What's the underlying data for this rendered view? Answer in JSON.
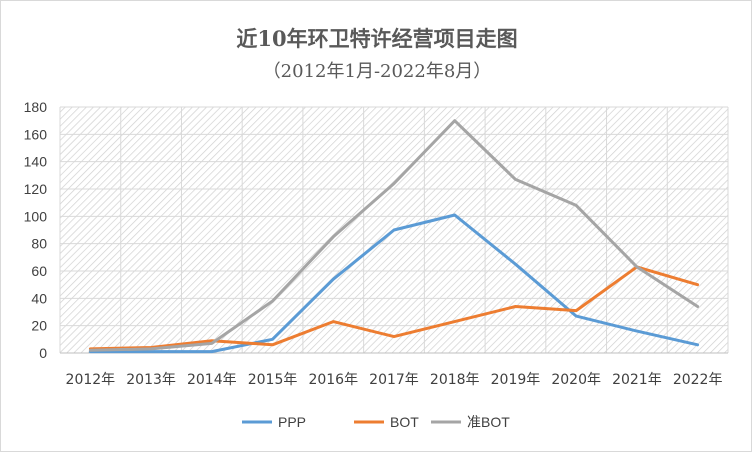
{
  "chart_data": {
    "type": "line",
    "title": "近10年环卫特许经营项目走图",
    "subtitle": "（2012年1月-2022年8月）",
    "categories": [
      "2012年",
      "2013年",
      "2014年",
      "2015年",
      "2016年",
      "2017年",
      "2018年",
      "2019年",
      "2020年",
      "2021年",
      "2022年"
    ],
    "ylim": [
      0,
      180
    ],
    "yticks": [
      0,
      20,
      40,
      60,
      80,
      100,
      120,
      140,
      160,
      180
    ],
    "grid": true,
    "legend_position": "bottom",
    "series": [
      {
        "name": "PPP",
        "color": "#5b9bd5",
        "values": [
          1,
          1,
          1,
          10,
          54,
          90,
          101,
          65,
          27,
          16,
          6
        ]
      },
      {
        "name": "BOT",
        "color": "#ed7d31",
        "values": [
          3,
          4,
          9,
          6,
          23,
          12,
          23,
          34,
          31,
          63,
          50
        ]
      },
      {
        "name": "准BOT",
        "color": "#a5a5a5",
        "values": [
          2,
          3,
          7,
          38,
          85,
          124,
          170,
          127,
          108,
          63,
          34
        ]
      }
    ]
  }
}
